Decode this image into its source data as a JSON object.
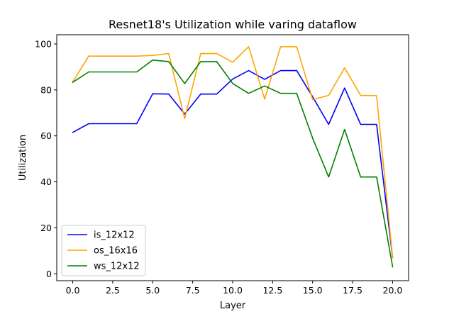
{
  "chart_data": {
    "type": "line",
    "title": "Resnet18's Utilization while varing dataflow",
    "xlabel": "Layer",
    "ylabel": "Utilization",
    "xlim": [
      -1,
      21
    ],
    "ylim": [
      -3,
      104
    ],
    "xticks": [
      0.0,
      2.5,
      5.0,
      7.5,
      10.0,
      12.5,
      15.0,
      17.5,
      20.0
    ],
    "xtick_labels": [
      "0.0",
      "2.5",
      "5.0",
      "7.5",
      "10.0",
      "12.5",
      "15.0",
      "17.5",
      "20.0"
    ],
    "yticks": [
      0,
      20,
      40,
      60,
      80,
      100
    ],
    "ytick_labels": [
      "0",
      "20",
      "40",
      "60",
      "80",
      "100"
    ],
    "grid": false,
    "legend_position": "lower-left",
    "x": [
      0,
      1,
      2,
      3,
      4,
      5,
      6,
      7,
      8,
      9,
      10,
      11,
      12,
      13,
      14,
      15,
      16,
      17,
      18,
      19,
      20
    ],
    "series": [
      {
        "name": "is_12x12",
        "color": "#0000ff",
        "values": [
          61.5,
          65.3,
          65.3,
          65.3,
          65.3,
          78.3,
          78.2,
          69.5,
          78.2,
          78.2,
          84.7,
          88.4,
          84.6,
          88.4,
          88.4,
          77.0,
          65.0,
          80.8,
          65.0,
          65.0,
          7.0
        ]
      },
      {
        "name": "os_16x16",
        "color": "#ffa500",
        "values": [
          83.5,
          94.7,
          94.7,
          94.7,
          94.7,
          95.0,
          95.8,
          67.5,
          95.8,
          95.8,
          92.0,
          98.8,
          76.0,
          98.8,
          98.8,
          75.8,
          77.6,
          89.6,
          77.6,
          77.5,
          7.0
        ]
      },
      {
        "name": "ws_12x12",
        "color": "#008000",
        "values": [
          83.3,
          87.8,
          87.8,
          87.8,
          87.8,
          93.0,
          92.3,
          82.8,
          92.3,
          92.3,
          82.8,
          78.5,
          81.7,
          78.5,
          78.5,
          59.0,
          42.1,
          62.8,
          42.1,
          42.1,
          3.0
        ]
      }
    ]
  }
}
